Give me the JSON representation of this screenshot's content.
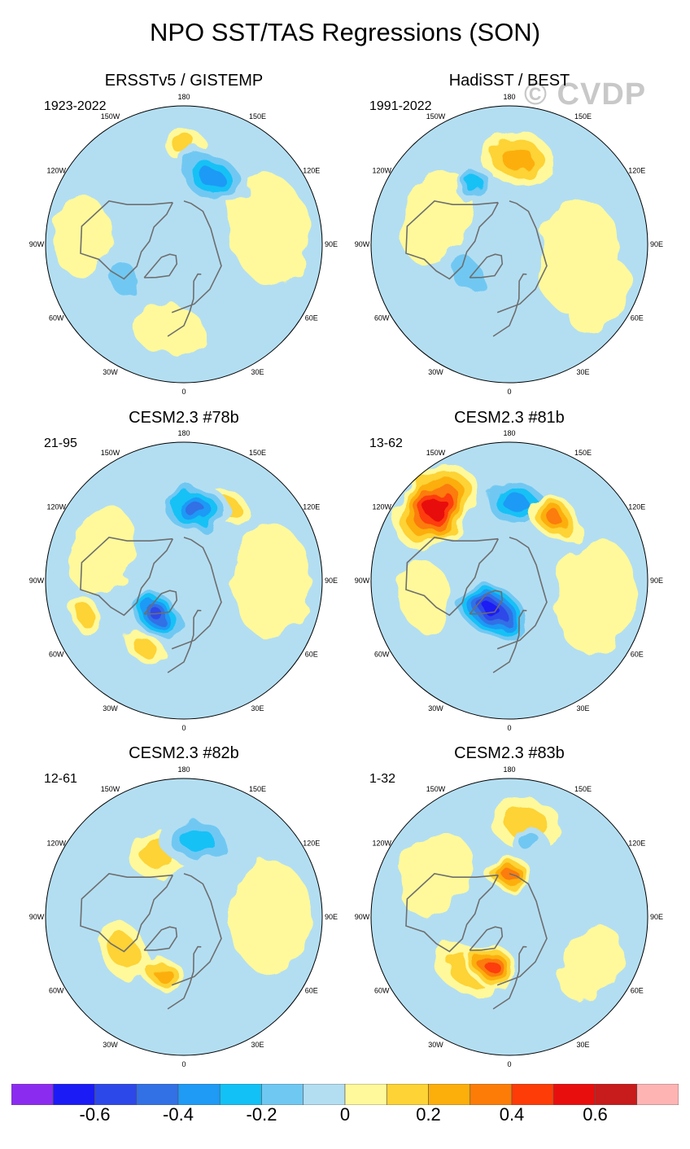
{
  "title": "NPO SST/TAS Regressions (SON)",
  "watermark": "© CVDP",
  "chart_data": {
    "type": "heatmap",
    "projection": "north-polar stereographic",
    "lon_labels": [
      "180",
      "150E",
      "120E",
      "90E",
      "60E",
      "30E",
      "0",
      "30W",
      "60W",
      "90W",
      "120W",
      "150W"
    ],
    "panels": [
      {
        "name": "ERSSTv5 / GISTEMP",
        "period": "1923-2022",
        "blobs": [
          {
            "level": -0.4,
            "lon": 158,
            "lat": 48,
            "r": 48
          },
          {
            "level": -0.3,
            "lon": 165,
            "lat": 50,
            "r": 30
          },
          {
            "level": 0.2,
            "lon": 180,
            "lat": 32,
            "r": 26
          },
          {
            "level": -0.2,
            "lon": -60,
            "lat": 50,
            "r": 40
          },
          {
            "level": 0.1,
            "lon": -95,
            "lat": 30,
            "r": 50
          },
          {
            "level": 0.1,
            "lon": 100,
            "lat": 40,
            "r": 70
          },
          {
            "level": 0.1,
            "lon": -10,
            "lat": 40,
            "r": 45
          }
        ]
      },
      {
        "name": "HadiSST / BEST",
        "period": "1991-2022",
        "blobs": [
          {
            "level": 0.3,
            "lon": 175,
            "lat": 40,
            "r": 45
          },
          {
            "level": 0.2,
            "lon": 165,
            "lat": 42,
            "r": 30
          },
          {
            "level": -0.3,
            "lon": -150,
            "lat": 50,
            "r": 25
          },
          {
            "level": -0.2,
            "lon": -55,
            "lat": 60,
            "r": 40
          },
          {
            "level": 0.1,
            "lon": 80,
            "lat": 50,
            "r": 70
          },
          {
            "level": 0.1,
            "lon": -110,
            "lat": 45,
            "r": 60
          },
          {
            "level": 0.1,
            "lon": 60,
            "lat": 30,
            "r": 50
          }
        ]
      },
      {
        "name": "CESM2.3 #78b",
        "period": "21-95",
        "blobs": [
          {
            "level": -0.5,
            "lon": 172,
            "lat": 48,
            "r": 45
          },
          {
            "level": 0.2,
            "lon": 150,
            "lat": 40,
            "r": 28
          },
          {
            "level": -0.6,
            "lon": -40,
            "lat": 65,
            "r": 40
          },
          {
            "level": 0.2,
            "lon": -30,
            "lat": 45,
            "r": 25
          },
          {
            "level": 0.2,
            "lon": -70,
            "lat": 30,
            "r": 25
          },
          {
            "level": 0.1,
            "lon": 90,
            "lat": 40,
            "r": 70
          },
          {
            "level": 0.1,
            "lon": -110,
            "lat": 40,
            "r": 55
          }
        ]
      },
      {
        "name": "CESM2.3 #81b",
        "period": "13-62",
        "blobs": [
          {
            "level": 0.6,
            "lon": -135,
            "lat": 30,
            "r": 60
          },
          {
            "level": -0.4,
            "lon": 175,
            "lat": 45,
            "r": 45
          },
          {
            "level": 0.4,
            "lon": 145,
            "lat": 45,
            "r": 35
          },
          {
            "level": -0.7,
            "lon": -30,
            "lat": 70,
            "r": 50
          },
          {
            "level": 0.1,
            "lon": 80,
            "lat": 40,
            "r": 70
          },
          {
            "level": 0.1,
            "lon": -80,
            "lat": 40,
            "r": 45
          }
        ]
      },
      {
        "name": "CESM2.3 #82b",
        "period": "12-61",
        "blobs": [
          {
            "level": -0.3,
            "lon": 170,
            "lat": 45,
            "r": 48
          },
          {
            "level": 0.2,
            "lon": -160,
            "lat": 50,
            "r": 40
          },
          {
            "level": 0.3,
            "lon": -20,
            "lat": 55,
            "r": 28
          },
          {
            "level": 0.2,
            "lon": -60,
            "lat": 50,
            "r": 40
          },
          {
            "level": 0.1,
            "lon": 90,
            "lat": 40,
            "r": 70
          },
          {
            "level": -0.1,
            "lon": -100,
            "lat": 50,
            "r": 50
          }
        ]
      },
      {
        "name": "CESM2.3 #83b",
        "period": "1-32",
        "blobs": [
          {
            "level": 0.2,
            "lon": 170,
            "lat": 35,
            "r": 45
          },
          {
            "level": -0.2,
            "lon": 165,
            "lat": 45,
            "r": 25
          },
          {
            "level": 0.4,
            "lon": 180,
            "lat": 65,
            "r": 28
          },
          {
            "level": 0.5,
            "lon": -20,
            "lat": 60,
            "r": 35
          },
          {
            "level": 0.2,
            "lon": -40,
            "lat": 50,
            "r": 40
          },
          {
            "level": 0.1,
            "lon": -120,
            "lat": 40,
            "r": 55
          },
          {
            "level": 0.1,
            "lon": 60,
            "lat": 35,
            "r": 50
          }
        ]
      }
    ],
    "colorbar": {
      "levels": [
        -0.7,
        -0.6,
        -0.5,
        -0.4,
        -0.3,
        -0.2,
        -0.1,
        0,
        0.1,
        0.2,
        0.3,
        0.4,
        0.5,
        0.6,
        0.7
      ],
      "colors": [
        "#8c2bf0",
        "#1b1bf5",
        "#2d48e8",
        "#3270e6",
        "#1f9af5",
        "#12c1f6",
        "#6fc8f2",
        "#b3def2",
        "#fff99b",
        "#fdd335",
        "#fcae0b",
        "#fc7c07",
        "#fd3c07",
        "#e80e0e",
        "#c81b1b",
        "#ffb4b4"
      ],
      "tick_labels": [
        "-0.6",
        "-0.4",
        "-0.2",
        "0",
        "0.2",
        "0.4",
        "0.6"
      ]
    }
  }
}
